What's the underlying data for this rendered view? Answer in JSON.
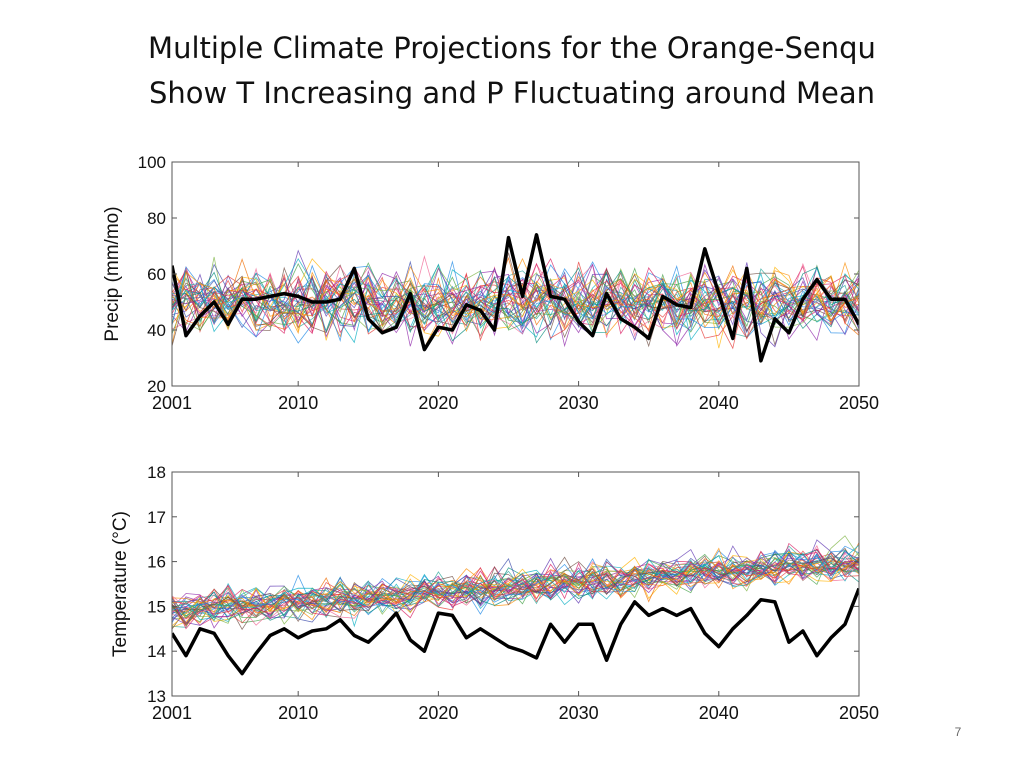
{
  "slide": {
    "title_line1": "Multiple Climate Projections for the Orange-Senqu",
    "title_line2": "Show T Increasing and P Fluctuating around Mean",
    "page_number": "7"
  },
  "chart_data": [
    {
      "type": "line",
      "title": "",
      "xlabel": "",
      "ylabel": "Precip (mm/mo)",
      "xlim": [
        2001,
        2050
      ],
      "ylim": [
        20,
        100
      ],
      "xticks": [
        "2001",
        "2010",
        "2020",
        "2030",
        "2040",
        "2050"
      ],
      "yticks": [
        "20",
        "40",
        "60",
        "80",
        "100"
      ],
      "grid": false,
      "series_colors": [
        "#e53935",
        "#1e88e5",
        "#43a047",
        "#8e24aa",
        "#fb8c00",
        "#00acc1",
        "#d81b60",
        "#6d4c41",
        "#7cb342",
        "#3949ab",
        "#f06292",
        "#26a69a",
        "#ffb300",
        "#5e35b1",
        "#ef6c00",
        "#00897b"
      ],
      "ensemble": {
        "description_count": 40,
        "mean": 50,
        "spread": 9
      },
      "highlight_color": "#000000",
      "series": [
        {
          "x": [
            2001,
            2002,
            2003,
            2004,
            2005,
            2006,
            2007,
            2008,
            2009,
            2010,
            2011,
            2012,
            2013,
            2014,
            2015,
            2016,
            2017,
            2018,
            2019,
            2020,
            2021,
            2022,
            2023,
            2024,
            2025,
            2026,
            2027,
            2028,
            2029,
            2030,
            2031,
            2032,
            2033,
            2034,
            2035,
            2036,
            2037,
            2038,
            2039,
            2040,
            2041,
            2042,
            2043,
            2044,
            2045,
            2046,
            2047,
            2048,
            2049,
            2050
          ],
          "values": [
            63,
            38,
            45,
            50,
            42,
            51,
            51,
            52,
            53,
            52,
            50,
            50,
            51,
            62,
            44,
            39,
            41,
            53,
            33,
            41,
            40,
            49,
            47,
            40,
            73,
            52,
            74,
            52,
            51,
            43,
            38,
            53,
            44,
            41,
            37,
            52,
            49,
            48,
            69,
            53,
            37,
            62,
            29,
            44,
            39,
            51,
            58,
            51,
            51,
            42
          ]
        }
      ]
    },
    {
      "type": "line",
      "title": "",
      "xlabel": "",
      "ylabel": "Temperature (°C)",
      "xlim": [
        2001,
        2050
      ],
      "ylim": [
        13,
        18
      ],
      "xticks": [
        "2001",
        "2010",
        "2020",
        "2030",
        "2040",
        "2050"
      ],
      "yticks": [
        "13",
        "14",
        "15",
        "16",
        "17",
        "18"
      ],
      "grid": false,
      "series_colors": [
        "#e53935",
        "#1e88e5",
        "#43a047",
        "#8e24aa",
        "#fb8c00",
        "#00acc1",
        "#d81b60",
        "#6d4c41",
        "#7cb342",
        "#3949ab",
        "#f06292",
        "#26a69a",
        "#ffb300",
        "#5e35b1",
        "#ef6c00",
        "#00897b"
      ],
      "ensemble": {
        "description_count": 40,
        "start_mean": 14.9,
        "end_mean": 16.0,
        "spread": 0.3
      },
      "highlight_color": "#000000",
      "series": [
        {
          "x": [
            2001,
            2002,
            2003,
            2004,
            2005,
            2006,
            2007,
            2008,
            2009,
            2010,
            2011,
            2012,
            2013,
            2014,
            2015,
            2016,
            2017,
            2018,
            2019,
            2020,
            2021,
            2022,
            2023,
            2024,
            2025,
            2026,
            2027,
            2028,
            2029,
            2030,
            2031,
            2032,
            2033,
            2034,
            2035,
            2036,
            2037,
            2038,
            2039,
            2040,
            2041,
            2042,
            2043,
            2044,
            2045,
            2046,
            2047,
            2048,
            2049,
            2050
          ],
          "values": [
            14.4,
            13.9,
            14.5,
            14.4,
            13.9,
            13.5,
            13.95,
            14.35,
            14.5,
            14.3,
            14.45,
            14.5,
            14.7,
            14.35,
            14.2,
            14.5,
            14.85,
            14.25,
            14.0,
            14.85,
            14.8,
            14.3,
            14.5,
            14.3,
            14.1,
            14.0,
            13.85,
            14.6,
            14.2,
            14.6,
            14.6,
            13.8,
            14.6,
            15.1,
            14.8,
            14.95,
            14.8,
            14.95,
            14.4,
            14.1,
            14.5,
            14.8,
            15.15,
            15.1,
            14.2,
            14.45,
            13.9,
            14.3,
            14.6,
            15.4
          ]
        }
      ]
    }
  ]
}
